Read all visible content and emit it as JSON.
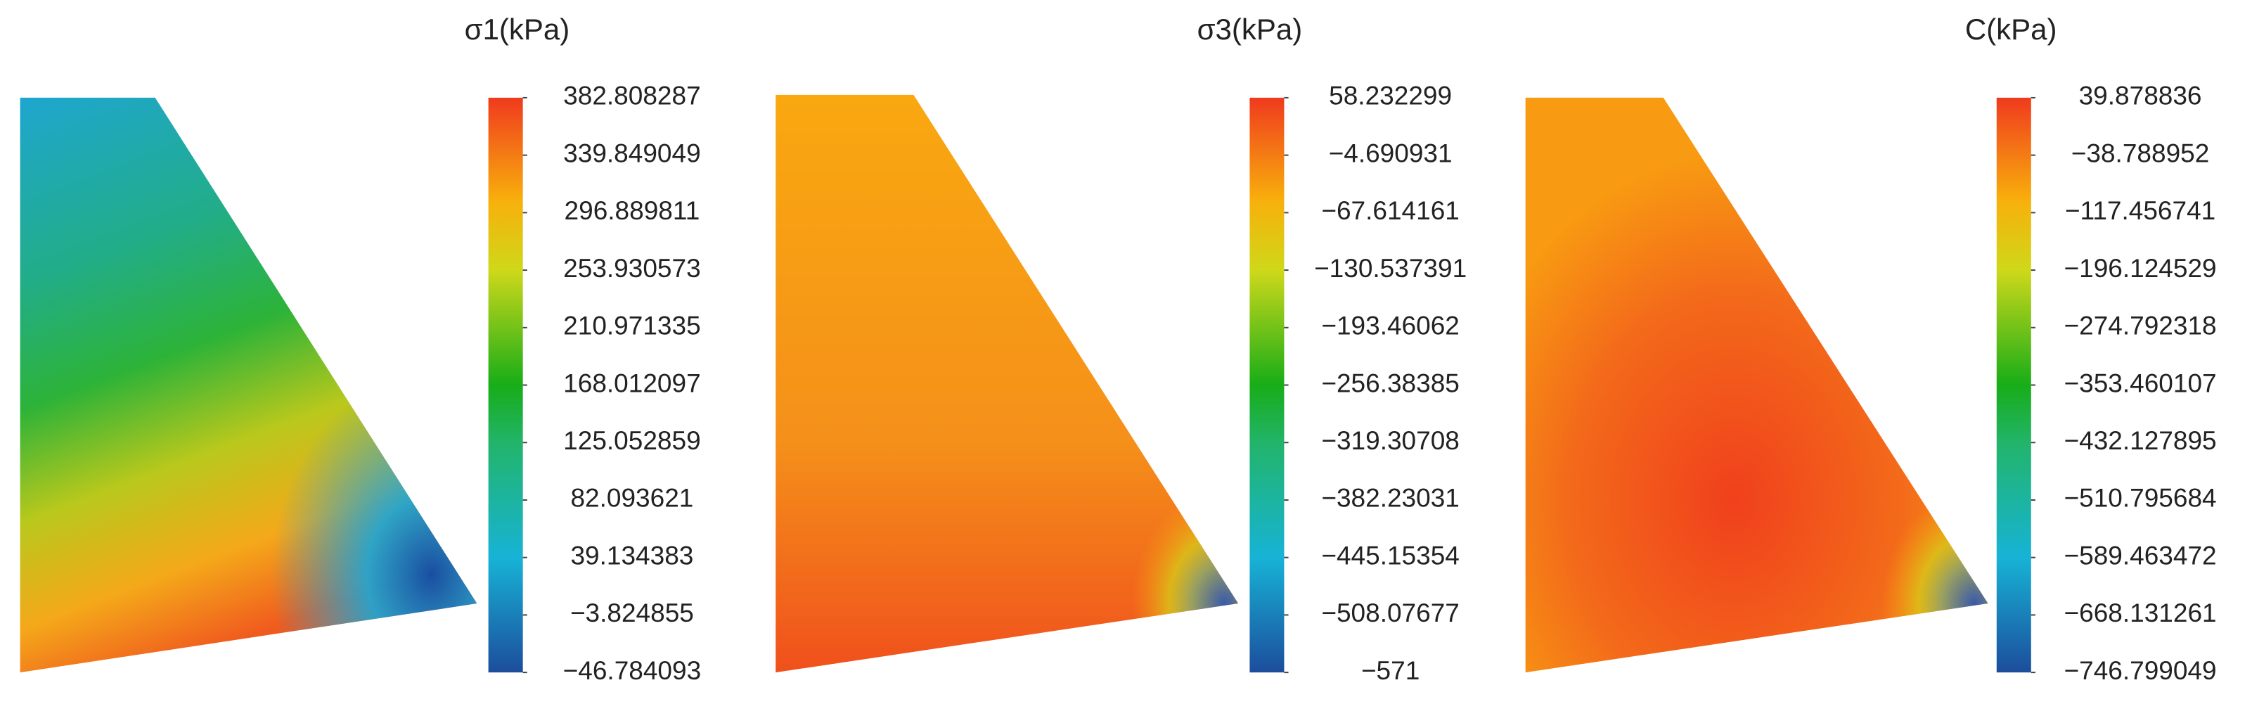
{
  "chart_data": [
    {
      "type": "contour",
      "title": "σ1(kPa)",
      "clim": [
        -46.784093,
        382.808287
      ],
      "cticks": [
        382.808287,
        339.849049,
        296.889811,
        253.930573,
        210.971335,
        168.012097,
        125.052859,
        82.093621,
        39.134383,
        {
          "value": -3.824855,
          "label": "−3.824855"
        },
        {
          "value": -46.784093,
          "label": "−46.784093"
        }
      ]
    },
    {
      "type": "contour",
      "title": "σ3(kPa)",
      "clim": [
        -571,
        58.232299
      ],
      "cticks": [
        58.232299,
        {
          "value": -4.690931,
          "label": "−4.690931"
        },
        {
          "value": -67.614161,
          "label": "−67.614161"
        },
        {
          "value": -130.537391,
          "label": "−130.537391"
        },
        {
          "value": -193.46062,
          "label": "−193.46062"
        },
        {
          "value": -256.38385,
          "label": "−256.38385"
        },
        {
          "value": -319.30708,
          "label": "−319.30708"
        },
        {
          "value": -382.23031,
          "label": "−382.23031"
        },
        {
          "value": -445.15354,
          "label": "−445.15354"
        },
        {
          "value": -508.07677,
          "label": "−508.07677"
        },
        {
          "value": -571,
          "label": "−571"
        }
      ]
    },
    {
      "type": "contour",
      "title": "C(kPa)",
      "clim": [
        -746.799049,
        39.878836
      ],
      "cticks": [
        39.878836,
        {
          "value": -38.788952,
          "label": "−38.788952"
        },
        {
          "value": -117.456741,
          "label": "−117.456741"
        },
        {
          "value": -196.124529,
          "label": "−196.124529"
        },
        {
          "value": -274.792318,
          "label": "−274.792318"
        },
        {
          "value": -353.460107,
          "label": "−353.460107"
        },
        {
          "value": -432.127895,
          "label": "−432.127895"
        },
        {
          "value": -510.795684,
          "label": "−510.795684"
        },
        {
          "value": -589.463472,
          "label": "−589.463472"
        },
        {
          "value": -668.131261,
          "label": "−668.131261"
        },
        {
          "value": -746.799049,
          "label": "−746.799049"
        }
      ]
    }
  ]
}
